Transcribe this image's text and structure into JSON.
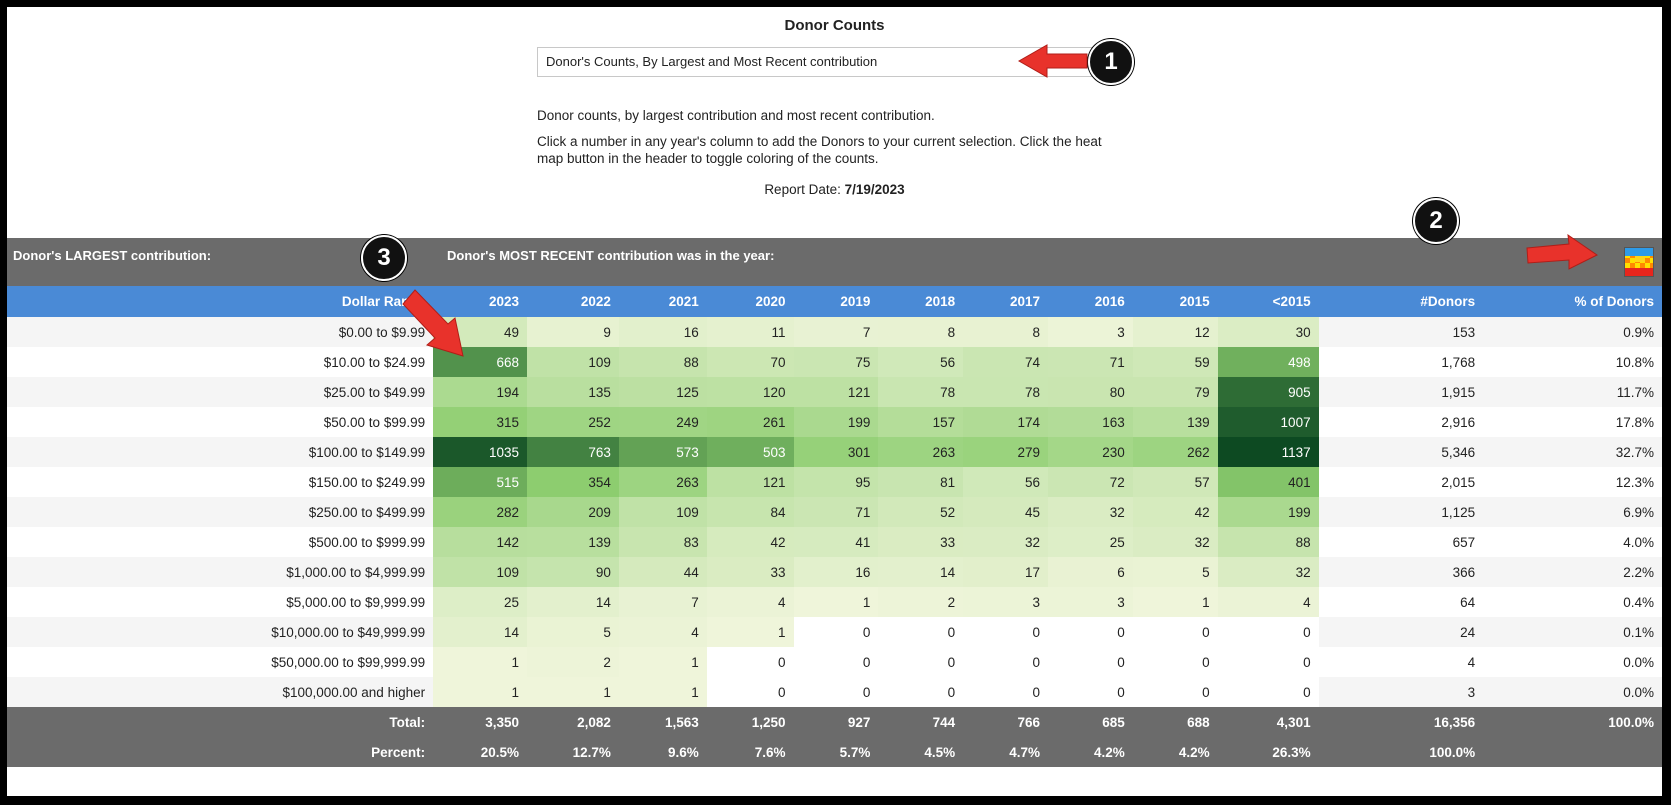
{
  "title": "Donor Counts",
  "report_select": {
    "value": "Donor's Counts, By Largest and Most Recent contribution"
  },
  "description": {
    "line1": "Donor counts, by largest contribution and most recent contribution.",
    "line2": "Click a number in any year's column to add the Donors to your current selection. Click the heat map button in the header to toggle coloring of the counts."
  },
  "report_date": {
    "label": "Report Date:",
    "value": "7/19/2023"
  },
  "header": {
    "largest_label": "Donor's LARGEST contribution:",
    "recent_label": "Donor's MOST RECENT contribution was in the year:",
    "heat_map_icon": "heat-map-icon"
  },
  "columns": [
    "Dollar Range",
    "2023",
    "2022",
    "2021",
    "2020",
    "2019",
    "2018",
    "2017",
    "2016",
    "2015",
    "<2015",
    "#Donors",
    "% of Donors"
  ],
  "rows": [
    {
      "range": "$0.00 to $9.99",
      "counts": [
        49,
        9,
        16,
        11,
        7,
        8,
        8,
        3,
        12,
        30
      ],
      "donors": "153",
      "pct": "0.9%"
    },
    {
      "range": "$10.00 to $24.99",
      "counts": [
        668,
        109,
        88,
        70,
        75,
        56,
        74,
        71,
        59,
        498
      ],
      "donors": "1,768",
      "pct": "10.8%"
    },
    {
      "range": "$25.00 to $49.99",
      "counts": [
        194,
        135,
        125,
        120,
        121,
        78,
        78,
        80,
        79,
        905
      ],
      "donors": "1,915",
      "pct": "11.7%"
    },
    {
      "range": "$50.00 to $99.99",
      "counts": [
        315,
        252,
        249,
        261,
        199,
        157,
        174,
        163,
        139,
        1007
      ],
      "donors": "2,916",
      "pct": "17.8%"
    },
    {
      "range": "$100.00 to $149.99",
      "counts": [
        1035,
        763,
        573,
        503,
        301,
        263,
        279,
        230,
        262,
        1137
      ],
      "donors": "5,346",
      "pct": "32.7%"
    },
    {
      "range": "$150.00 to $249.99",
      "counts": [
        515,
        354,
        263,
        121,
        95,
        81,
        56,
        72,
        57,
        401
      ],
      "donors": "2,015",
      "pct": "12.3%"
    },
    {
      "range": "$250.00 to $499.99",
      "counts": [
        282,
        209,
        109,
        84,
        71,
        52,
        45,
        32,
        42,
        199
      ],
      "donors": "1,125",
      "pct": "6.9%"
    },
    {
      "range": "$500.00 to $999.99",
      "counts": [
        142,
        139,
        83,
        42,
        41,
        33,
        32,
        25,
        32,
        88
      ],
      "donors": "657",
      "pct": "4.0%"
    },
    {
      "range": "$1,000.00 to $4,999.99",
      "counts": [
        109,
        90,
        44,
        33,
        16,
        14,
        17,
        6,
        5,
        32
      ],
      "donors": "366",
      "pct": "2.2%"
    },
    {
      "range": "$5,000.00 to $9,999.99",
      "counts": [
        25,
        14,
        7,
        4,
        1,
        2,
        3,
        3,
        1,
        4
      ],
      "donors": "64",
      "pct": "0.4%"
    },
    {
      "range": "$10,000.00 to $49,999.99",
      "counts": [
        14,
        5,
        4,
        1,
        0,
        0,
        0,
        0,
        0,
        0
      ],
      "donors": "24",
      "pct": "0.1%"
    },
    {
      "range": "$50,000.00 to $99,999.99",
      "counts": [
        1,
        2,
        1,
        0,
        0,
        0,
        0,
        0,
        0,
        0
      ],
      "donors": "4",
      "pct": "0.0%"
    },
    {
      "range": "$100,000.00 and higher",
      "counts": [
        1,
        1,
        1,
        0,
        0,
        0,
        0,
        0,
        0,
        0
      ],
      "donors": "3",
      "pct": "0.0%"
    }
  ],
  "totals": {
    "label": "Total:",
    "values": [
      "3,350",
      "2,082",
      "1,563",
      "1,250",
      "927",
      "744",
      "766",
      "685",
      "688",
      "4,301",
      "16,356",
      "100.0%"
    ]
  },
  "percents": {
    "label": "Percent:",
    "values": [
      "20.5%",
      "12.7%",
      "9.6%",
      "7.6%",
      "5.7%",
      "4.5%",
      "4.7%",
      "4.2%",
      "4.2%",
      "26.3%",
      "100.0%"
    ]
  },
  "callouts": [
    "1",
    "2",
    "3"
  ],
  "colors": {
    "header_gray": "#6b6b6b",
    "column_blue": "#4a8ad6",
    "arrow_red": "#e8322b",
    "heat_low": "#f2f6dd",
    "heat_high": "#0d4a22"
  }
}
